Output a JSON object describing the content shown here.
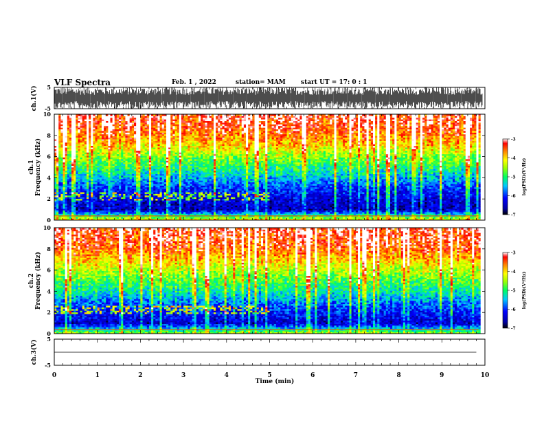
{
  "header": {
    "title": "VLF Spectra",
    "date": "Feb. 1  , 2022",
    "station": "station= MAM",
    "start": "start  UT  =    17: 0   : 1"
  },
  "chart_data": [
    {
      "type": "line",
      "name": "ch1-waveform",
      "ylabel": "ch.1(V)",
      "ylim": [
        -5,
        5
      ],
      "yticks": [
        "5",
        "-5"
      ],
      "xlim": [
        0,
        10
      ],
      "note_values": "dense impulsive waveform saturating approximately -5..5 V"
    },
    {
      "type": "heatmap",
      "name": "ch1-spectrogram",
      "ylabel_line1": "ch.1",
      "ylabel_line2": "Frequency  (kHz)",
      "ylim": [
        0,
        10
      ],
      "yticks": [
        "0",
        "2",
        "4",
        "6",
        "8",
        "10"
      ],
      "xlim": [
        0,
        10
      ],
      "colorbar": {
        "label": "log(PSD)(V²/Hz)",
        "range": [
          -7,
          -3
        ],
        "ticks": [
          "-3",
          "-4",
          "-5",
          "-6",
          "-7"
        ],
        "colors": [
          "#000080",
          "#0000ff",
          "#00c8ff",
          "#00ff80",
          "#80ff00",
          "#ffff00",
          "#ff8000",
          "#ff0000",
          "#ffffff"
        ]
      },
      "levels_by_freq_khz": [
        {
          "f": 0,
          "logpsd": -4.0
        },
        {
          "f": 1,
          "logpsd": -6.5
        },
        {
          "f": 2,
          "logpsd": -6.3
        },
        {
          "f": 3,
          "logpsd": -6.0
        },
        {
          "f": 4,
          "logpsd": -5.5
        },
        {
          "f": 5,
          "logpsd": -5.0
        },
        {
          "f": 6,
          "logpsd": -4.6
        },
        {
          "f": 7,
          "logpsd": -4.0
        },
        {
          "f": 8,
          "logpsd": -3.6
        },
        {
          "f": 9,
          "logpsd": -3.3
        },
        {
          "f": 10,
          "logpsd": -3.2
        }
      ]
    },
    {
      "type": "heatmap",
      "name": "ch2-spectrogram",
      "ylabel_line1": "ch.2",
      "ylabel_line2": "Frequency  (kHz)",
      "ylim": [
        0,
        10
      ],
      "yticks": [
        "0",
        "2",
        "4",
        "6",
        "8",
        "10"
      ],
      "xlim": [
        0,
        10
      ],
      "colorbar": {
        "label": "log(PSD)(V²/Hz)",
        "range": [
          -7,
          -3
        ],
        "ticks": [
          "-3",
          "-4",
          "-5",
          "-6",
          "-7"
        ]
      },
      "levels_by_freq_khz": [
        {
          "f": 0,
          "logpsd": -4.5
        },
        {
          "f": 1,
          "logpsd": -6.4
        },
        {
          "f": 2,
          "logpsd": -6.1
        },
        {
          "f": 3,
          "logpsd": -5.7
        },
        {
          "f": 4,
          "logpsd": -5.2
        },
        {
          "f": 5,
          "logpsd": -4.8
        },
        {
          "f": 6,
          "logpsd": -4.4
        },
        {
          "f": 7,
          "logpsd": -3.9
        },
        {
          "f": 8,
          "logpsd": -3.5
        },
        {
          "f": 9,
          "logpsd": -3.3
        },
        {
          "f": 10,
          "logpsd": -3.2
        }
      ]
    },
    {
      "type": "line",
      "name": "ch3-waveform",
      "ylabel": "ch.3(V)",
      "ylim": [
        -5,
        5
      ],
      "yticks": [
        "5",
        "-5"
      ],
      "xlim": [
        0,
        10
      ],
      "x": [
        0,
        9.8
      ],
      "y": [
        0,
        0
      ],
      "xlabel": "Time  (min)",
      "xticks": [
        "0",
        "1",
        "2",
        "3",
        "4",
        "5",
        "6",
        "7",
        "8",
        "9",
        "10"
      ]
    }
  ]
}
